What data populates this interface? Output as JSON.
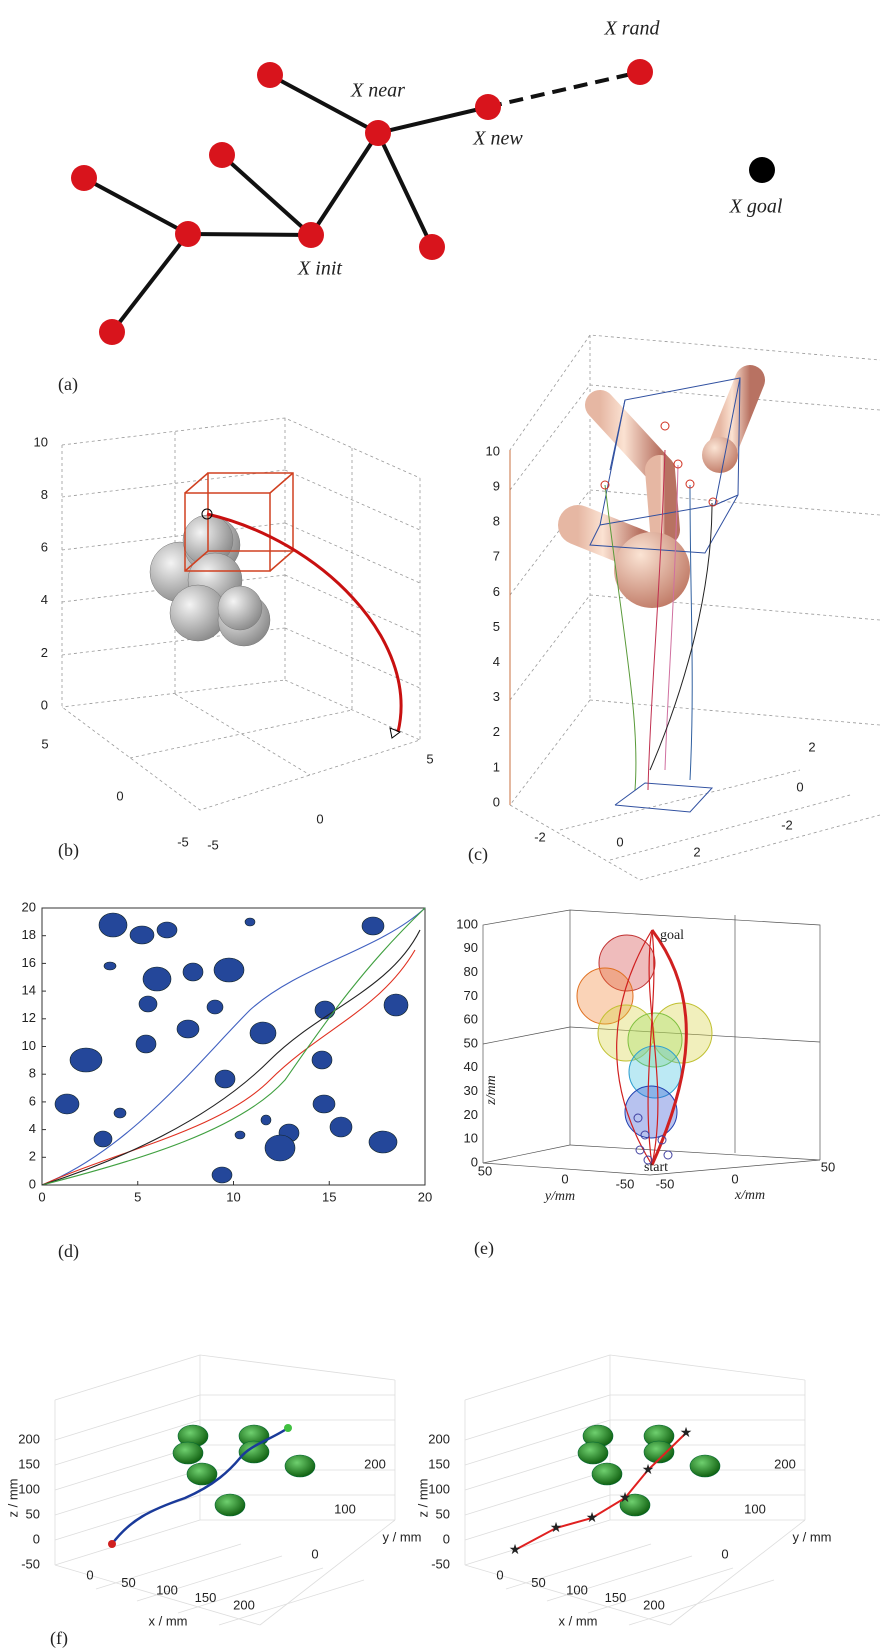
{
  "panel_a": {
    "label": "(a)",
    "nodes": [
      "X rand",
      "X near",
      "X new",
      "X goal",
      "X init"
    ]
  },
  "panel_b": {
    "label": "(b)",
    "z_ticks": [
      0,
      2,
      4,
      6,
      8,
      10
    ],
    "y_ticks": [
      5,
      0,
      -5
    ],
    "x_ticks": [
      -5,
      0,
      5
    ]
  },
  "panel_c": {
    "label": "(c)",
    "z_ticks": [
      0,
      1,
      2,
      3,
      4,
      5,
      6,
      7,
      8,
      9,
      10
    ],
    "x_ticks": [
      -2,
      0,
      2
    ],
    "y_ticks": [
      2,
      0,
      -2
    ]
  },
  "panel_d": {
    "label": "(d)",
    "x_ticks": [
      0,
      5,
      10,
      15,
      20
    ],
    "y_ticks": [
      0,
      2,
      4,
      6,
      8,
      10,
      12,
      14,
      16,
      18,
      20
    ]
  },
  "panel_e": {
    "label": "(e)",
    "z_label": "z/mm",
    "y_label": "y/mm",
    "x_label": "x/mm",
    "z_ticks": [
      0,
      10,
      20,
      30,
      40,
      50,
      60,
      70,
      80,
      90,
      100
    ],
    "y_ticks": [
      50,
      0,
      -50
    ],
    "x_ticks": [
      -50,
      0,
      50
    ],
    "annotations": [
      "goal",
      "start"
    ]
  },
  "panel_f": {
    "label": "(f)",
    "plots": [
      {
        "z_label": "z / mm",
        "x_label": "x / mm",
        "y_label": "y / mm",
        "z_ticks": [
          200,
          150,
          100,
          50,
          0,
          -50
        ],
        "x_ticks": [
          0,
          50,
          100,
          150,
          200
        ],
        "y_ticks": [
          0,
          100,
          200
        ]
      },
      {
        "z_label": "z / mm",
        "x_label": "x / mm",
        "y_label": "y / mm",
        "z_ticks": [
          200,
          150,
          100,
          50,
          0,
          -50
        ],
        "x_ticks": [
          0,
          50,
          100,
          150,
          200
        ],
        "y_ticks": [
          0,
          100,
          200
        ]
      }
    ]
  }
}
